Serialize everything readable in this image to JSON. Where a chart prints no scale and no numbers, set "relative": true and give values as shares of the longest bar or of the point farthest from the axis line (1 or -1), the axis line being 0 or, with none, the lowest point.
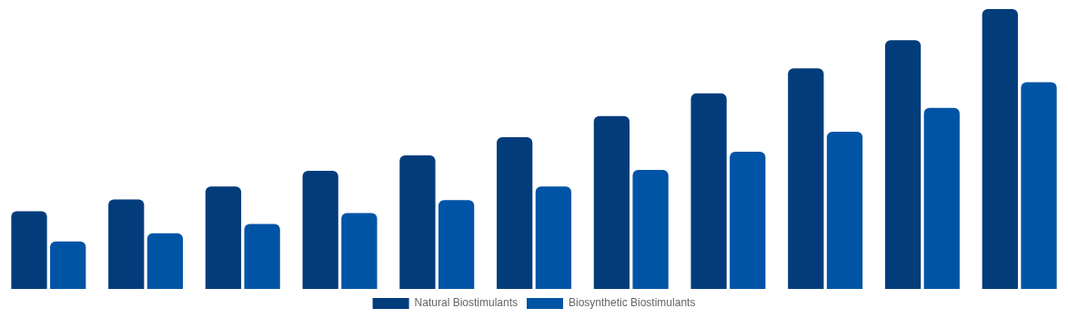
{
  "chart_data": {
    "type": "bar",
    "relative": true,
    "categories": [
      null,
      null,
      null,
      null,
      null,
      null,
      null,
      null,
      null,
      null,
      null
    ],
    "series": [
      {
        "name": "Natural Biostimulants",
        "color": "#033c7b",
        "values": [
          0.278,
          0.32,
          0.366,
          0.422,
          0.477,
          0.542,
          0.618,
          0.699,
          0.788,
          0.889,
          1
        ]
      },
      {
        "name": "Biosynthetic Biostimulants",
        "color": "#0054a6",
        "values": [
          0.17,
          0.199,
          0.232,
          0.271,
          0.317,
          0.366,
          0.425,
          0.49,
          0.562,
          0.647,
          0.739
        ]
      }
    ],
    "legend": "bottom",
    "grid": false
  }
}
